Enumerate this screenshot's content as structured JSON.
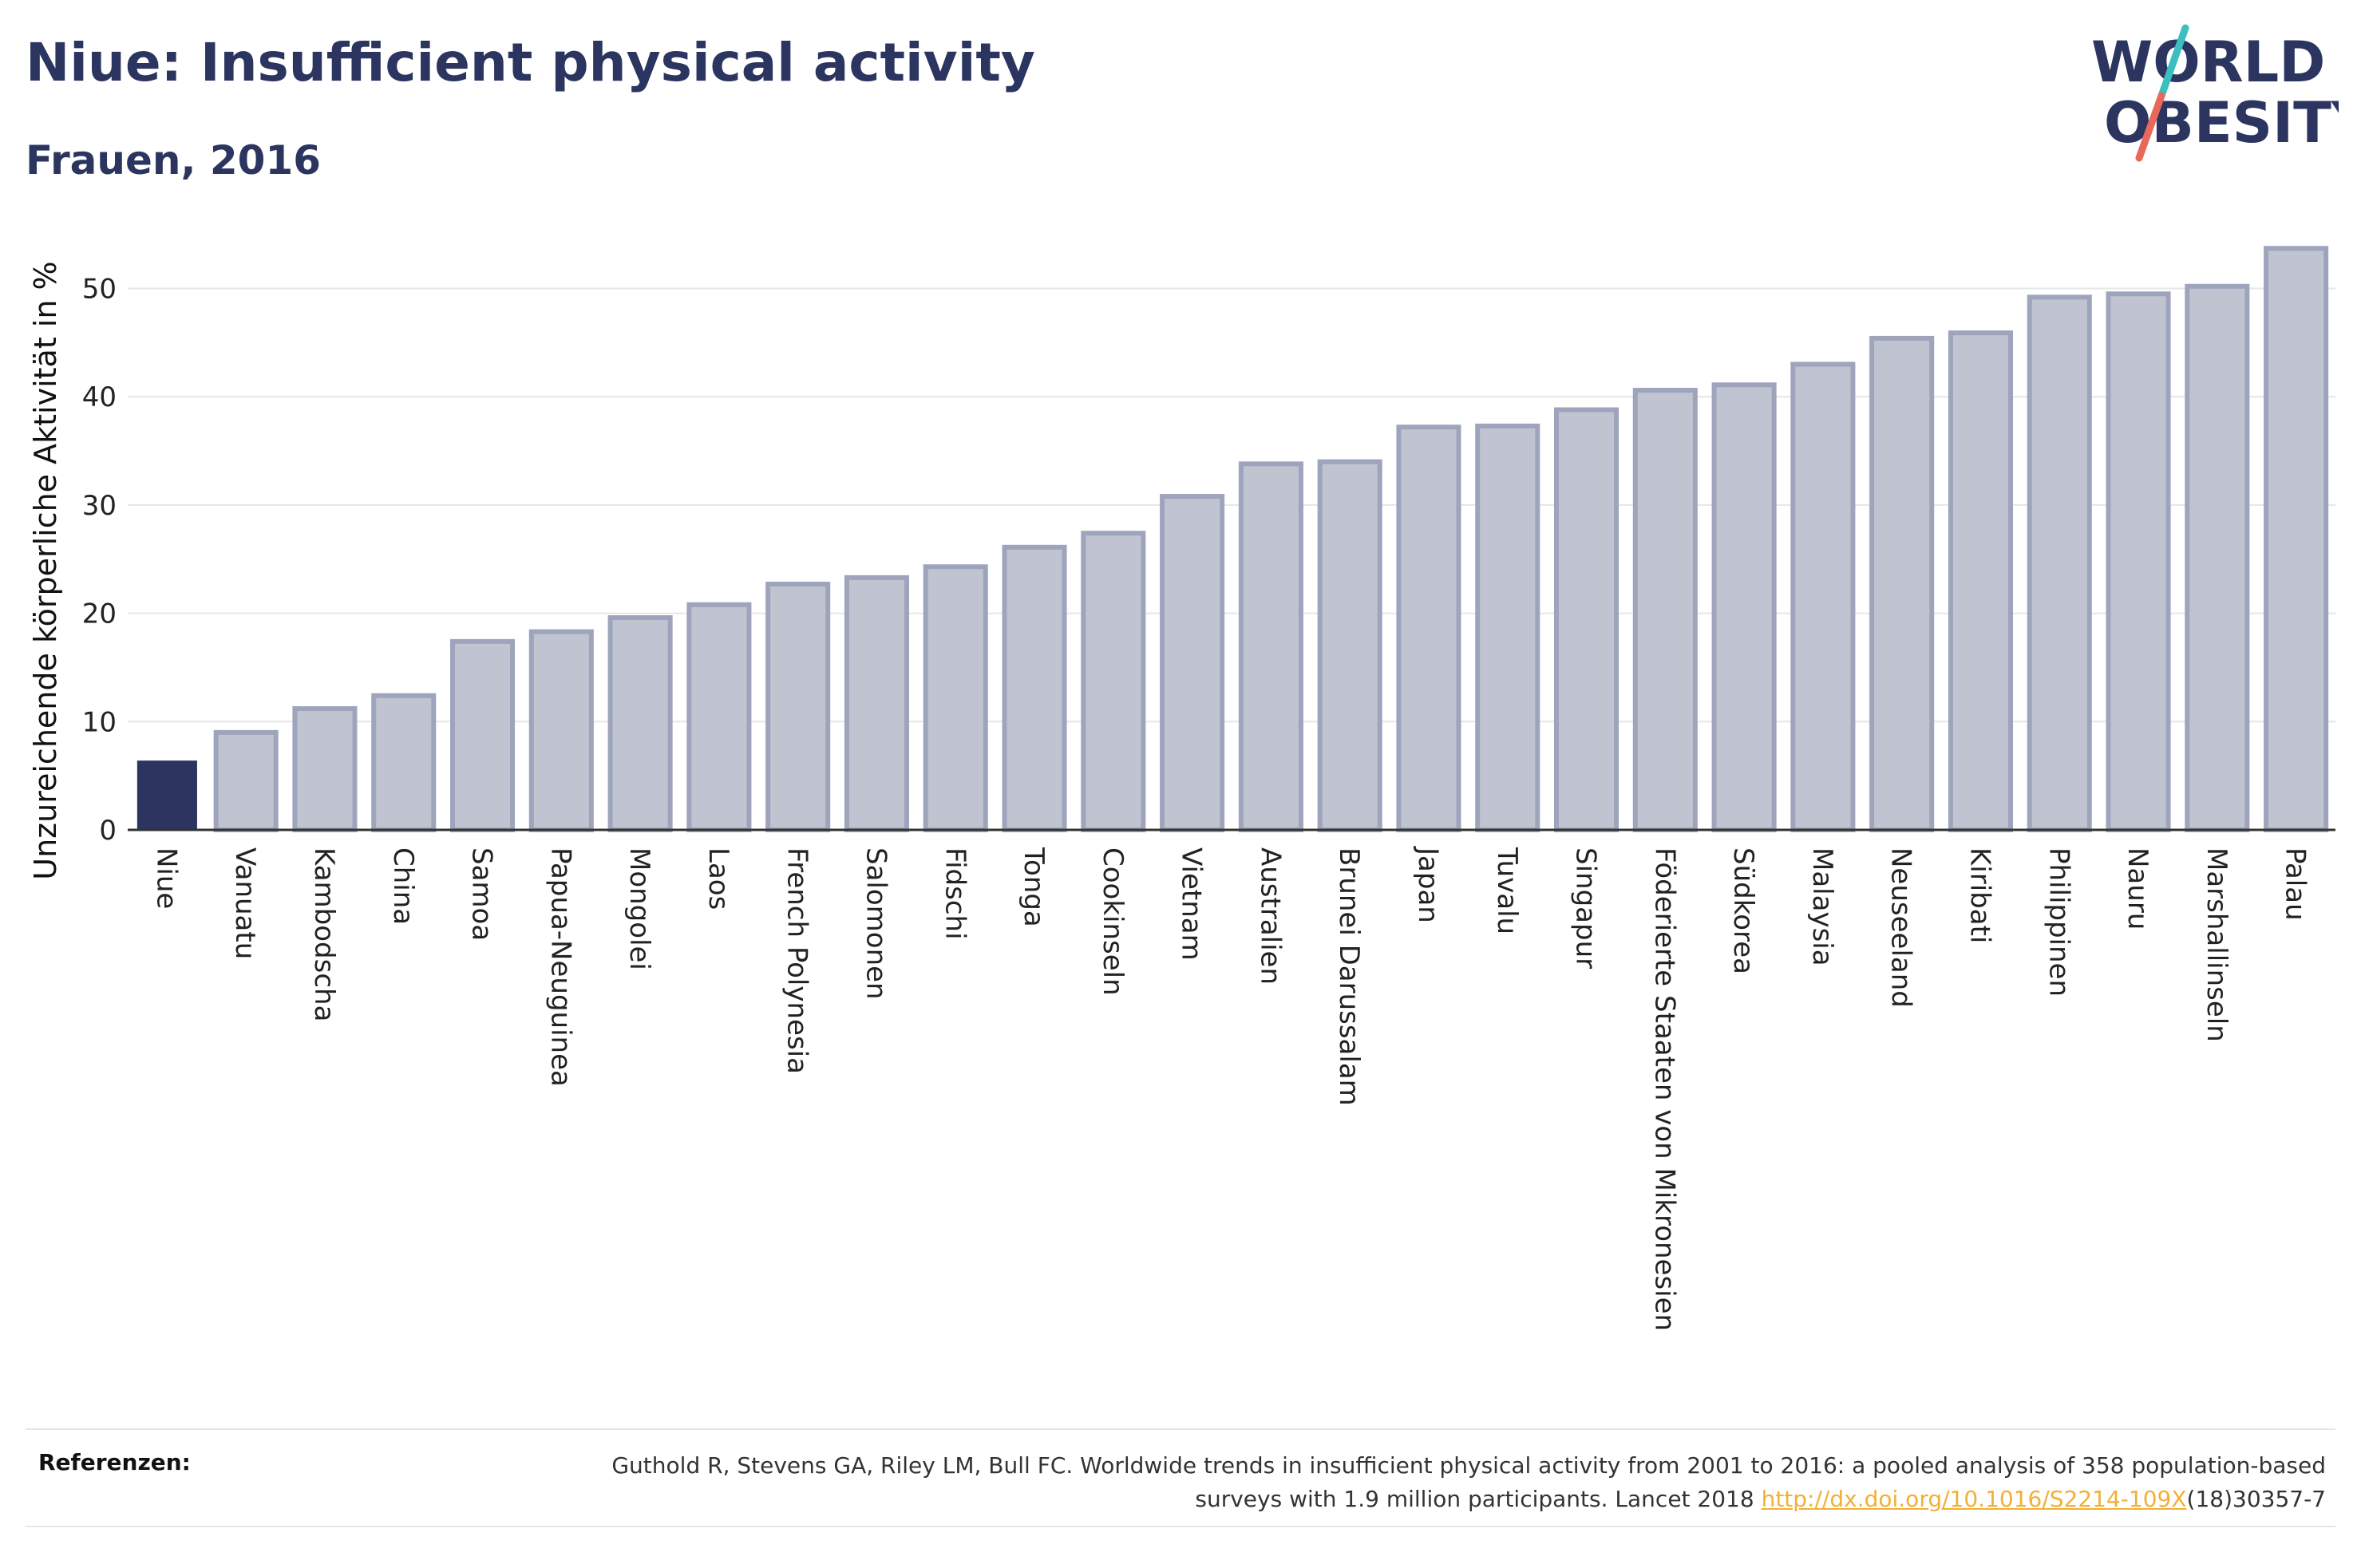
{
  "header": {
    "title": "Niue: Insufficient physical activity",
    "subtitle": "Frauen, 2016"
  },
  "logo": {
    "line1": "WORLD",
    "line2": "OBESITY",
    "colors": {
      "text": "#2b3560",
      "slash_top": "#3cbfbf",
      "slash_bottom": "#e8685a"
    }
  },
  "colors": {
    "highlight_bar": "#2b3560",
    "bar_fill": "#c0c4d0",
    "bar_stroke": "#9ea4bc",
    "grid": "#e6e6e6",
    "axis": "#333333"
  },
  "chart_data": {
    "type": "bar",
    "ylabel": "Unzureichende körperliche Aktivität in %",
    "ylim": [
      0,
      56
    ],
    "yticks": [
      0,
      10,
      20,
      30,
      40,
      50
    ],
    "grid": true,
    "highlight": "Niue",
    "categories": [
      "Niue",
      "Vanuatu",
      "Kambodscha",
      "China",
      "Samoa",
      "Papua-Neuguinea",
      "Mongolei",
      "Laos",
      "French Polynesia",
      "Salomonen",
      "Fidschi",
      "Tonga",
      "Cookinseln",
      "Vietnam",
      "Australien",
      "Brunei Darussalam",
      "Japan",
      "Tuvalu",
      "Singapur",
      "Föderierte Staaten von Mikronesien",
      "Südkorea",
      "Malaysia",
      "Neuseeland",
      "Kiribati",
      "Philippinen",
      "Nauru",
      "Marshallinseln",
      "Palau"
    ],
    "values": [
      6.4,
      9.0,
      11.2,
      12.4,
      17.4,
      18.3,
      19.6,
      20.8,
      22.7,
      23.3,
      24.3,
      26.1,
      27.4,
      30.8,
      33.8,
      34.0,
      37.2,
      37.3,
      38.8,
      40.6,
      41.1,
      43.0,
      45.4,
      45.9,
      49.2,
      49.5,
      50.2,
      53.7
    ]
  },
  "footer": {
    "label": "Referenzen:",
    "text_part1": "Guthold R, Stevens GA, Riley LM, Bull FC. Worldwide trends in insufficient physical activity from 2001 to 2016: a pooled analysis of 358 population-based surveys with 1.9 million participants. Lancet 2018 ",
    "link": "http://dx.doi.org/10.1016/S2214-109X",
    "text_part2": "(18)30357-7"
  }
}
